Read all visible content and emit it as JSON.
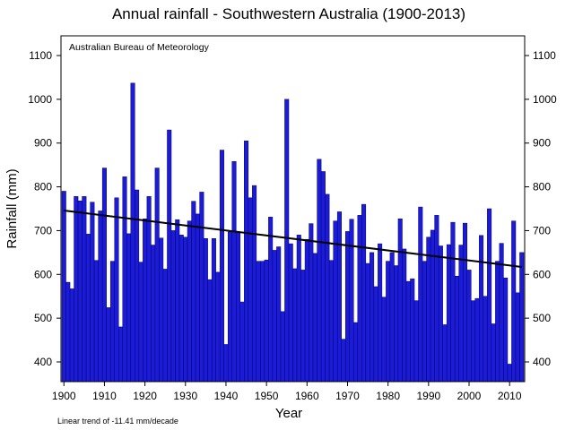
{
  "chart_data": {
    "type": "bar",
    "title": "Annual rainfall - Southwestern Australia (1900-2013)",
    "source_note": "Australian Bureau of Meteorology",
    "footnote": "Linear  trend of -11.41 mm/decade",
    "xlabel": "Year",
    "ylabel": "Rainfall (mm)",
    "xlim": [
      1900,
      2013
    ],
    "ylim": [
      355,
      1145
    ],
    "x_ticks": [
      1900,
      1910,
      1920,
      1930,
      1940,
      1950,
      1960,
      1970,
      1980,
      1990,
      2000,
      2010
    ],
    "y_ticks": [
      400,
      500,
      600,
      700,
      800,
      900,
      1000,
      1100
    ],
    "bar_color": "#1c1cd6",
    "bar_edge_color": "#000070",
    "trend_color": "#000000",
    "years": [
      1900,
      1901,
      1902,
      1903,
      1904,
      1905,
      1906,
      1907,
      1908,
      1909,
      1910,
      1911,
      1912,
      1913,
      1914,
      1915,
      1916,
      1917,
      1918,
      1919,
      1920,
      1921,
      1922,
      1923,
      1924,
      1925,
      1926,
      1927,
      1928,
      1929,
      1930,
      1931,
      1932,
      1933,
      1934,
      1935,
      1936,
      1937,
      1938,
      1939,
      1940,
      1941,
      1942,
      1943,
      1944,
      1945,
      1946,
      1947,
      1948,
      1949,
      1950,
      1951,
      1952,
      1953,
      1954,
      1955,
      1956,
      1957,
      1958,
      1959,
      1960,
      1961,
      1962,
      1963,
      1964,
      1965,
      1966,
      1967,
      1968,
      1969,
      1970,
      1971,
      1972,
      1973,
      1974,
      1975,
      1976,
      1977,
      1978,
      1979,
      1980,
      1981,
      1982,
      1983,
      1984,
      1985,
      1986,
      1987,
      1988,
      1989,
      1990,
      1991,
      1992,
      1993,
      1994,
      1995,
      1996,
      1997,
      1998,
      1999,
      2000,
      2001,
      2002,
      2003,
      2004,
      2005,
      2006,
      2007,
      2008,
      2009,
      2010,
      2011,
      2012,
      2013
    ],
    "values": [
      790,
      582,
      567,
      778,
      768,
      778,
      692,
      765,
      632,
      745,
      843,
      524,
      630,
      775,
      480,
      823,
      693,
      1037,
      793,
      628,
      727,
      778,
      667,
      843,
      683,
      612,
      930,
      700,
      725,
      690,
      685,
      722,
      767,
      738,
      788,
      682,
      588,
      682,
      605,
      884,
      440,
      697,
      858,
      695,
      537,
      905,
      775,
      803,
      630,
      630,
      633,
      731,
      655,
      663,
      515,
      1000,
      670,
      613,
      690,
      610,
      680,
      716,
      648,
      863,
      835,
      783,
      632,
      722,
      743,
      452,
      698,
      726,
      490,
      735,
      760,
      625,
      650,
      572,
      670,
      548,
      630,
      650,
      620,
      727,
      658,
      584,
      590,
      540,
      754,
      630,
      685,
      701,
      735,
      665,
      485,
      668,
      719,
      596,
      667,
      717,
      610,
      540,
      545,
      689,
      550,
      750,
      487,
      630,
      671,
      592,
      395,
      722,
      558,
      650
    ],
    "trend": {
      "start_year": 1900,
      "start_value": 746,
      "end_year": 2013,
      "end_value": 617
    }
  }
}
